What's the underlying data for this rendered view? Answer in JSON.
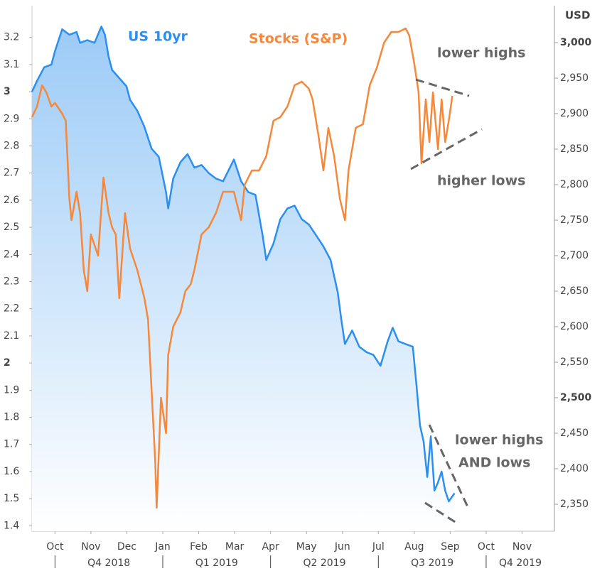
{
  "chart_data": {
    "type": "line",
    "y2_label": "USD",
    "annotations": [
      "lower highs",
      "higher lows",
      "lower highs",
      "AND lows"
    ],
    "xlim": [
      -0.64,
      13.9
    ],
    "xticks": [
      {
        "value": 0,
        "label": "Oct"
      },
      {
        "value": 1,
        "label": "Nov"
      },
      {
        "value": 2,
        "label": "Dec"
      },
      {
        "value": 3,
        "label": "Jan"
      },
      {
        "value": 4,
        "label": "Feb"
      },
      {
        "value": 5,
        "label": "Mar"
      },
      {
        "value": 6,
        "label": "Apr"
      },
      {
        "value": 7,
        "label": "May"
      },
      {
        "value": 8,
        "label": "Jun"
      },
      {
        "value": 9,
        "label": "Jul"
      },
      {
        "value": 10,
        "label": "Aug"
      },
      {
        "value": 11,
        "label": "Sep"
      },
      {
        "value": 12,
        "label": "Oct"
      },
      {
        "value": 13,
        "label": "Nov"
      }
    ],
    "quarters": [
      "Q4 2018",
      "Q1 2019",
      "Q2 2019",
      "Q3 2019",
      "Q4 2019"
    ],
    "ylim": [
      1.38,
      3.317
    ],
    "yticks": [
      1.4,
      1.5,
      1.6,
      1.7,
      1.8,
      1.9,
      2,
      2.1,
      2.2,
      2.3,
      2.4,
      2.5,
      2.6,
      2.7,
      2.8,
      2.9,
      3,
      3.1,
      3.2
    ],
    "y2lim": [
      2312,
      3052
    ],
    "y2ticks": [
      {
        "value": 2350,
        "label": "2,350"
      },
      {
        "value": 2400,
        "label": "2,400"
      },
      {
        "value": 2450,
        "label": "2,450"
      },
      {
        "value": 2500,
        "label": "2,500"
      },
      {
        "value": 2550,
        "label": "2,550"
      },
      {
        "value": 2600,
        "label": "2,600"
      },
      {
        "value": 2650,
        "label": "2,650"
      },
      {
        "value": 2700,
        "label": "2,700"
      },
      {
        "value": 2750,
        "label": "2,750"
      },
      {
        "value": 2800,
        "label": "2,800"
      },
      {
        "value": 2850,
        "label": "2,850"
      },
      {
        "value": 2900,
        "label": "2,900"
      },
      {
        "value": 2950,
        "label": "2,950"
      },
      {
        "value": 3000,
        "label": "3,000"
      }
    ],
    "series": [
      {
        "name": "US 10yr",
        "color": "#2b8ff0",
        "area": true,
        "x": [
          -0.64,
          -0.5,
          -0.3,
          -0.1,
          0,
          0.2,
          0.4,
          0.6,
          0.7,
          0.9,
          1.1,
          1.29,
          1.39,
          1.49,
          1.59,
          1.79,
          1.99,
          2.09,
          2.29,
          2.49,
          2.69,
          2.89,
          3.09,
          3.15,
          3.29,
          3.49,
          3.69,
          3.88,
          4.08,
          4.28,
          4.48,
          4.68,
          4.98,
          5.18,
          5.38,
          5.58,
          5.78,
          5.88,
          6.08,
          6.27,
          6.47,
          6.67,
          6.87,
          7.07,
          7.27,
          7.47,
          7.67,
          7.87,
          7.97,
          8.07,
          8.27,
          8.47,
          8.67,
          8.86,
          9.06,
          9.26,
          9.4,
          9.56,
          9.76,
          9.96,
          10.06,
          10.16,
          10.26,
          10.36,
          10.46,
          10.56,
          10.66,
          10.76,
          10.86,
          10.96,
          11.12
        ],
        "values": [
          3.0,
          3.04,
          3.09,
          3.1,
          3.15,
          3.23,
          3.21,
          3.22,
          3.18,
          3.19,
          3.18,
          3.24,
          3.21,
          3.13,
          3.08,
          3.05,
          3.02,
          2.97,
          2.93,
          2.87,
          2.79,
          2.76,
          2.63,
          2.57,
          2.68,
          2.74,
          2.77,
          2.72,
          2.73,
          2.7,
          2.68,
          2.67,
          2.75,
          2.67,
          2.63,
          2.62,
          2.47,
          2.38,
          2.44,
          2.53,
          2.57,
          2.58,
          2.53,
          2.51,
          2.47,
          2.43,
          2.38,
          2.26,
          2.16,
          2.07,
          2.12,
          2.06,
          2.04,
          2.03,
          1.99,
          2.08,
          2.13,
          2.08,
          2.07,
          2.06,
          1.92,
          1.77,
          1.71,
          1.58,
          1.73,
          1.53,
          1.56,
          1.6,
          1.53,
          1.49,
          1.52
        ]
      },
      {
        "name": "Stocks (S&P)",
        "color": "#f5883a",
        "axis": "y2",
        "x": [
          -0.64,
          -0.5,
          -0.36,
          -0.24,
          -0.1,
          0,
          0.2,
          0.3,
          0.4,
          0.46,
          0.6,
          0.7,
          0.8,
          0.9,
          1,
          1.2,
          1.35,
          1.49,
          1.59,
          1.69,
          1.79,
          1.95,
          2.09,
          2.29,
          2.49,
          2.59,
          2.69,
          2.79,
          2.83,
          2.95,
          3.09,
          3.15,
          3.29,
          3.49,
          3.63,
          3.78,
          3.88,
          4.08,
          4.28,
          4.48,
          4.68,
          4.98,
          5.18,
          5.28,
          5.48,
          5.68,
          5.88,
          6.08,
          6.27,
          6.47,
          6.67,
          6.87,
          7.07,
          7.17,
          7.33,
          7.47,
          7.61,
          7.77,
          7.93,
          8.07,
          8.17,
          8.37,
          8.57,
          8.76,
          8.96,
          9.16,
          9.36,
          9.56,
          9.76,
          9.86,
          10,
          10.12,
          10.2,
          10.32,
          10.42,
          10.52,
          10.66,
          10.76,
          10.86,
          10.96,
          11.06
        ],
        "values": [
          2895,
          2910,
          2940,
          2930,
          2910,
          2915,
          2900,
          2890,
          2780,
          2750,
          2790,
          2760,
          2680,
          2650,
          2730,
          2700,
          2810,
          2760,
          2740,
          2730,
          2640,
          2760,
          2710,
          2680,
          2640,
          2610,
          2510,
          2410,
          2345,
          2500,
          2450,
          2560,
          2600,
          2620,
          2650,
          2660,
          2680,
          2730,
          2740,
          2760,
          2790,
          2790,
          2750,
          2800,
          2820,
          2820,
          2840,
          2890,
          2895,
          2910,
          2940,
          2945,
          2935,
          2920,
          2870,
          2820,
          2880,
          2840,
          2780,
          2750,
          2820,
          2880,
          2885,
          2940,
          2965,
          3000,
          3015,
          3015,
          3020,
          3010,
          2970,
          2930,
          2830,
          2920,
          2860,
          2930,
          2850,
          2920,
          2860,
          2890,
          2925
        ]
      }
    ]
  }
}
